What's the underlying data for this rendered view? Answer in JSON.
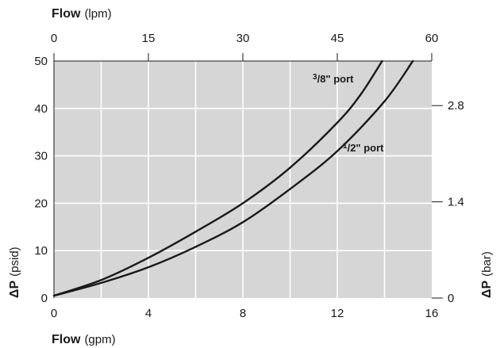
{
  "chart_data": {
    "type": "line",
    "title": "",
    "background": "#d6d6d6",
    "gridlines": true,
    "grid_color": "#ffffff",
    "line_color": "#1a1a1a",
    "x_bottom": {
      "label_bold": "Flow",
      "label_unit": "(gpm)",
      "range": [
        0,
        16
      ],
      "ticks": [
        0,
        4,
        8,
        12,
        16
      ],
      "tick_labels": [
        "0",
        "4",
        "8",
        "12",
        "16"
      ]
    },
    "x_top": {
      "label_bold": "Flow",
      "label_unit": "(lpm)",
      "range": [
        0,
        60
      ],
      "ticks": [
        0,
        15,
        30,
        45,
        60
      ],
      "tick_labels": [
        "0",
        "15",
        "30",
        "45",
        "60"
      ]
    },
    "y_left": {
      "label_bold": "ΔP",
      "label_unit": "(psid)",
      "range": [
        0,
        50
      ],
      "ticks": [
        0,
        10,
        20,
        30,
        40,
        50
      ],
      "tick_labels": [
        "0",
        "10",
        "20",
        "30",
        "40",
        "50"
      ]
    },
    "y_right": {
      "label_bold": "ΔP",
      "label_unit": "(bar)",
      "ticks_psid": [
        0,
        20.3,
        40.6
      ],
      "tick_labels": [
        "0",
        "1.4",
        "2.8"
      ]
    },
    "series": [
      {
        "name": "3/8\" port",
        "label_num": "3",
        "label_den": "8",
        "label_rest": "\" port",
        "x": [
          0,
          2,
          4,
          6,
          8,
          10,
          12,
          13,
          13.9
        ],
        "y": [
          0.5,
          3.8,
          8.5,
          14.0,
          20.0,
          27.5,
          37.0,
          43.0,
          50.0
        ]
      },
      {
        "name": "1/2\" port",
        "label_num": "1",
        "label_den": "2",
        "label_rest": "\" port",
        "x": [
          0,
          2,
          4,
          6,
          8,
          10,
          12,
          14,
          15.2
        ],
        "y": [
          0.5,
          3.2,
          6.5,
          10.8,
          16.0,
          23.0,
          31.0,
          41.5,
          50.0
        ]
      }
    ]
  }
}
